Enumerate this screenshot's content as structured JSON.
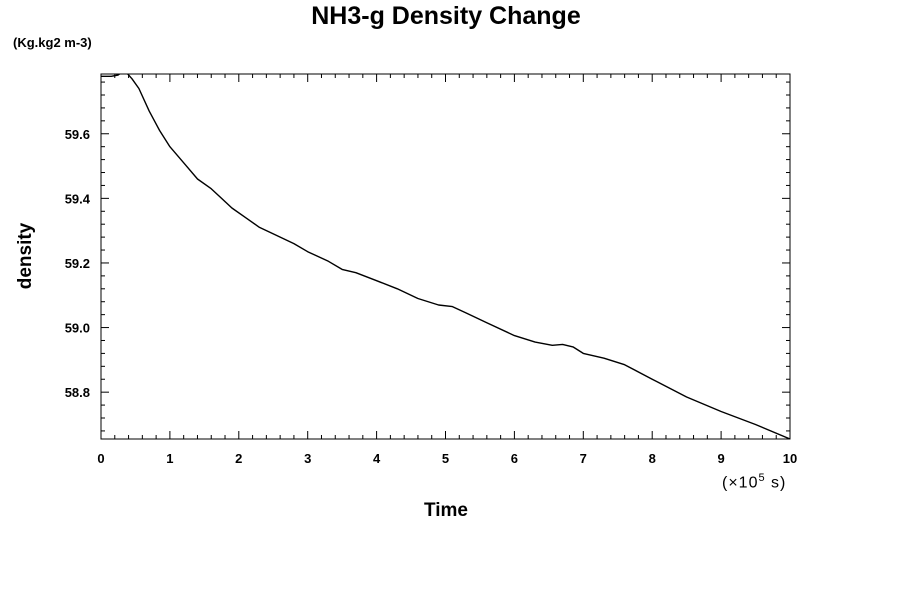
{
  "chart_data": {
    "type": "line",
    "title": "NH3-g Density Change",
    "unit_label": "(Kg.kg2 m-3)",
    "xlabel": "Time",
    "ylabel": "density",
    "x_scale_text": "(×10",
    "x_scale_exp": "5",
    "x_scale_unit": " s)",
    "xlim": [
      0,
      10
    ],
    "ylim": [
      58.655,
      59.785
    ],
    "x_ticks": [
      "0",
      "1",
      "2",
      "3",
      "4",
      "5",
      "6",
      "7",
      "8",
      "9",
      "10"
    ],
    "y_ticks": [
      "58.8",
      "59.0",
      "59.2",
      "59.4",
      "59.6"
    ],
    "grid": false,
    "series": [
      {
        "color": "#000000",
        "x": [
          0,
          0.15,
          0.25,
          0.3,
          0.38,
          0.45,
          0.55,
          0.7,
          0.85,
          1.0,
          1.2,
          1.4,
          1.6,
          1.75,
          1.9,
          2.1,
          2.3,
          2.5,
          2.8,
          3.0,
          3.3,
          3.5,
          3.7,
          4.0,
          4.3,
          4.6,
          4.9,
          5.1,
          5.3,
          5.6,
          6.0,
          6.3,
          6.55,
          6.7,
          6.85,
          7.0,
          7.3,
          7.6,
          8.0,
          8.5,
          9.0,
          9.5,
          10.0
        ],
        "values": [
          59.778,
          59.778,
          59.782,
          59.79,
          59.787,
          59.77,
          59.74,
          59.67,
          59.61,
          59.56,
          59.51,
          59.46,
          59.43,
          59.4,
          59.37,
          59.34,
          59.31,
          59.29,
          59.26,
          59.235,
          59.205,
          59.18,
          59.17,
          59.145,
          59.12,
          59.09,
          59.07,
          59.065,
          59.045,
          59.015,
          58.975,
          58.955,
          58.945,
          58.948,
          58.94,
          58.92,
          58.905,
          58.885,
          58.84,
          58.785,
          58.74,
          58.7,
          58.655
        ]
      }
    ]
  }
}
